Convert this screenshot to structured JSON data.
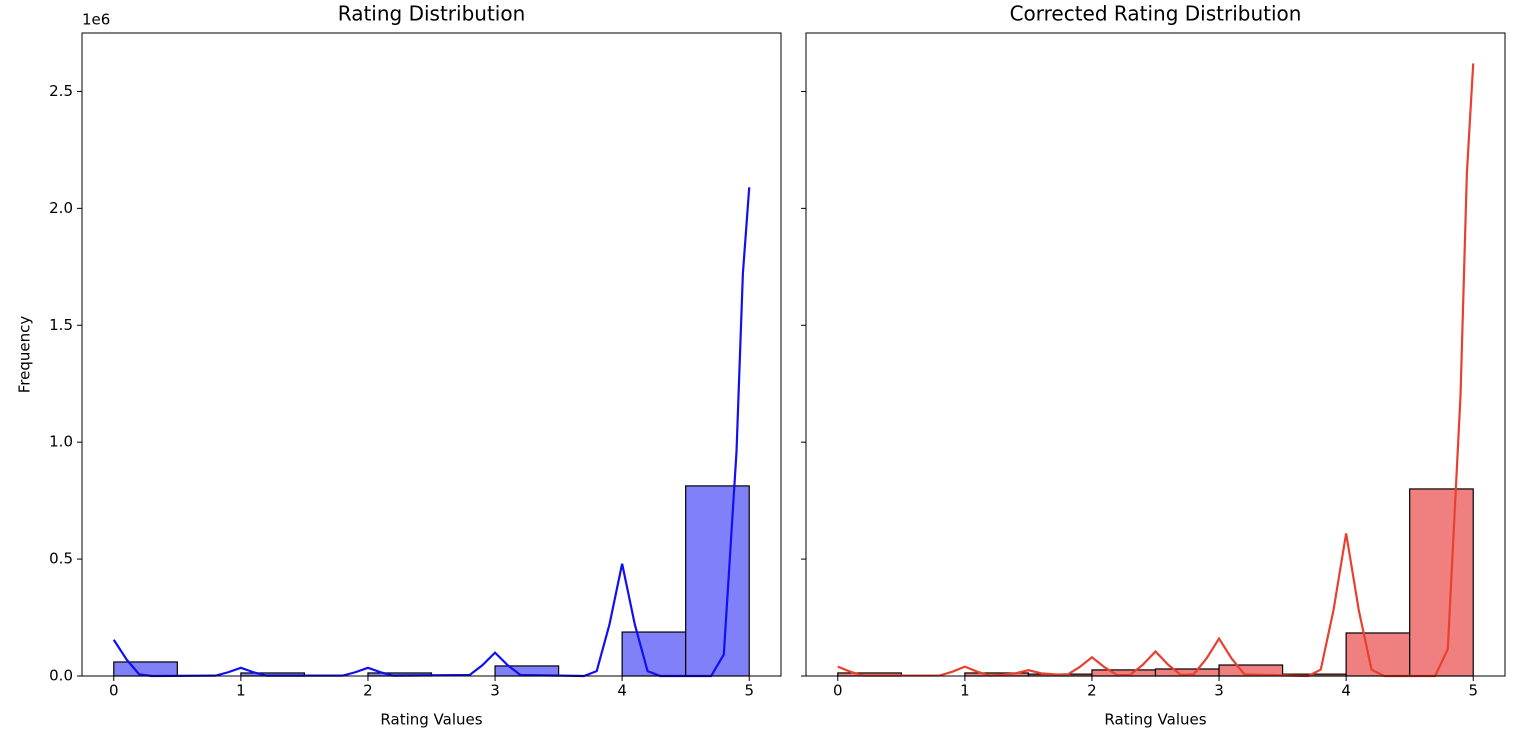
{
  "chart_data": [
    {
      "type": "histogram",
      "title": "Rating Distribution",
      "xlabel": "Rating Values",
      "ylabel": "Frequency",
      "y_offset_label": "1e6",
      "bins": [
        0,
        0.5,
        1,
        1.5,
        2,
        2.5,
        3,
        3.5,
        4,
        4.5,
        5
      ],
      "values": [
        60000,
        0,
        13000,
        0,
        13000,
        0,
        43000,
        0,
        188000,
        813000
      ],
      "color": "#8080f8",
      "kde": {
        "color": "#1010f0",
        "x": [
          0,
          0.1,
          0.2,
          0.3,
          0.8,
          0.9,
          1,
          1.1,
          1.2,
          1.8,
          1.9,
          2,
          2.1,
          2.2,
          2.8,
          2.9,
          3,
          3.1,
          3.2,
          3.7,
          3.8,
          3.9,
          4,
          4.1,
          4.2,
          4.3,
          4.7,
          4.8,
          4.9,
          4.95,
          5
        ],
        "values": [
          155000,
          71000,
          7000,
          0,
          1500,
          16000,
          35000,
          16000,
          1500,
          1500,
          16000,
          35000,
          16000,
          1500,
          4400,
          46000,
          100000,
          46000,
          4400,
          0,
          21000,
          220000,
          480000,
          220000,
          21000,
          0,
          0,
          92000,
          960000,
          1720000,
          2090000
        ]
      },
      "xlim": [
        -0.25,
        5.25
      ],
      "xticks": [
        0,
        1,
        2,
        3,
        4,
        5
      ],
      "ylim": [
        0,
        2750000
      ],
      "yticks": [
        {
          "value": 0,
          "label": "0.0"
        },
        {
          "value": 500000,
          "label": "0.5"
        },
        {
          "value": 1000000,
          "label": "1.0"
        },
        {
          "value": 1500000,
          "label": "1.5"
        },
        {
          "value": 2000000,
          "label": "2.0"
        },
        {
          "value": 2500000,
          "label": "2.5"
        }
      ]
    },
    {
      "type": "histogram",
      "title": "Corrected Rating Distribution",
      "xlabel": "Rating Values",
      "bins": [
        0,
        0.5,
        1,
        1.5,
        2,
        2.5,
        3,
        3.5,
        4,
        4.5,
        5
      ],
      "values": [
        13000,
        0,
        13000,
        8000,
        26000,
        30000,
        47000,
        8000,
        184000,
        800000
      ],
      "color": "#f08080",
      "kde": {
        "color": "#e8402f",
        "x": [
          0,
          0.1,
          0.2,
          0.8,
          0.9,
          1,
          1.1,
          1.2,
          1.4,
          1.5,
          1.6,
          1.8,
          1.9,
          2,
          2.1,
          2.2,
          2.3,
          2.4,
          2.5,
          2.6,
          2.7,
          2.8,
          2.9,
          3,
          3.1,
          3.2,
          3.7,
          3.8,
          3.9,
          4,
          4.1,
          4.2,
          4.3,
          4.7,
          4.8,
          4.9,
          4.95,
          5
        ],
        "values": [
          40000,
          18000,
          1800,
          1800,
          18000,
          40000,
          18000,
          1800,
          11500,
          25000,
          11500,
          3500,
          37000,
          80000,
          37000,
          3500,
          4600,
          48000,
          105000,
          48000,
          4600,
          7000,
          74000,
          160000,
          74000,
          7000,
          0,
          27000,
          280000,
          610000,
          280000,
          27000,
          0,
          0,
          115000,
          1200000,
          2150000,
          2620000
        ]
      },
      "xlim": [
        -0.25,
        5.25
      ],
      "xticks": [
        0,
        1,
        2,
        3,
        4,
        5
      ],
      "ylim": [
        0,
        2750000
      ],
      "yticks": [
        0,
        500000,
        1000000,
        1500000,
        2000000,
        2500000
      ]
    }
  ]
}
